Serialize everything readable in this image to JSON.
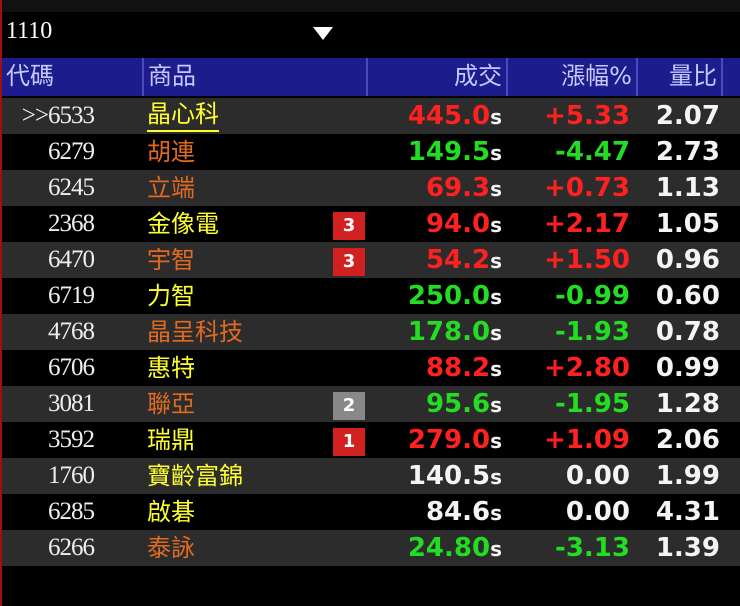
{
  "symbol_input": "1110",
  "colors": {
    "up": "#ff2020",
    "down": "#22dd22",
    "flat": "#f4f4f4",
    "name_yellow": "#ffff30",
    "name_orange": "#e06a20",
    "header_bg": "#1c1c8c",
    "badge_red": "#d02020",
    "badge_gray": "#888888"
  },
  "headers": {
    "code": "代碼",
    "name": "商品",
    "price": "成交",
    "change": "漲幅%",
    "ratio": "量比"
  },
  "rows": [
    {
      "code": ">>6533",
      "name": "晶心科",
      "name_color": "yellow",
      "badge": "",
      "price": "445.0",
      "price_suffix": "s",
      "change": "+5.33",
      "dir": "up",
      "ratio": "2.07"
    },
    {
      "code": "6279",
      "name": "胡連",
      "name_color": "orange",
      "badge": "",
      "price": "149.5",
      "price_suffix": "s",
      "change": "-4.47",
      "dir": "down",
      "ratio": "2.73"
    },
    {
      "code": "6245",
      "name": "立端",
      "name_color": "orange",
      "badge": "",
      "price": "69.3",
      "price_suffix": "s",
      "change": "+0.73",
      "dir": "up",
      "ratio": "1.13"
    },
    {
      "code": "2368",
      "name": "金像電",
      "name_color": "yellow",
      "badge": "3",
      "badge_color": "red",
      "price": "94.0",
      "price_suffix": "s",
      "change": "+2.17",
      "dir": "up",
      "ratio": "1.05"
    },
    {
      "code": "6470",
      "name": "宇智",
      "name_color": "orange",
      "badge": "3",
      "badge_color": "red",
      "price": "54.2",
      "price_suffix": "s",
      "change": "+1.50",
      "dir": "up",
      "ratio": "0.96"
    },
    {
      "code": "6719",
      "name": "力智",
      "name_color": "yellow",
      "badge": "",
      "price": "250.0",
      "price_suffix": "s",
      "change": "-0.99",
      "dir": "down",
      "ratio": "0.60"
    },
    {
      "code": "4768",
      "name": "晶呈科技",
      "name_color": "orange",
      "badge": "",
      "price": "178.0",
      "price_suffix": "s",
      "change": "-1.93",
      "dir": "down",
      "ratio": "0.78"
    },
    {
      "code": "6706",
      "name": "惠特",
      "name_color": "yellow",
      "badge": "",
      "price": "88.2",
      "price_suffix": "s",
      "change": "+2.80",
      "dir": "up",
      "ratio": "0.99"
    },
    {
      "code": "3081",
      "name": "聯亞",
      "name_color": "orange",
      "badge": "2",
      "badge_color": "gray",
      "price": "95.6",
      "price_suffix": "s",
      "change": "-1.95",
      "dir": "down",
      "ratio": "1.28"
    },
    {
      "code": "3592",
      "name": "瑞鼎",
      "name_color": "yellow",
      "badge": "1",
      "badge_color": "red",
      "price": "279.0",
      "price_suffix": "s",
      "change": "+1.09",
      "dir": "up",
      "ratio": "2.06"
    },
    {
      "code": "1760",
      "name": "寶齡富錦",
      "name_color": "yellow",
      "badge": "",
      "price": "140.5",
      "price_suffix": "s",
      "change": "0.00",
      "dir": "flat",
      "ratio": "1.99"
    },
    {
      "code": "6285",
      "name": "啟碁",
      "name_color": "yellow",
      "badge": "",
      "price": "84.6",
      "price_suffix": "s",
      "change": "0.00",
      "dir": "flat",
      "ratio": "4.31"
    },
    {
      "code": "6266",
      "name": "泰詠",
      "name_color": "orange",
      "badge": "",
      "price": "24.80",
      "price_suffix": "s",
      "change": "-3.13",
      "dir": "down",
      "ratio": "1.39"
    }
  ]
}
